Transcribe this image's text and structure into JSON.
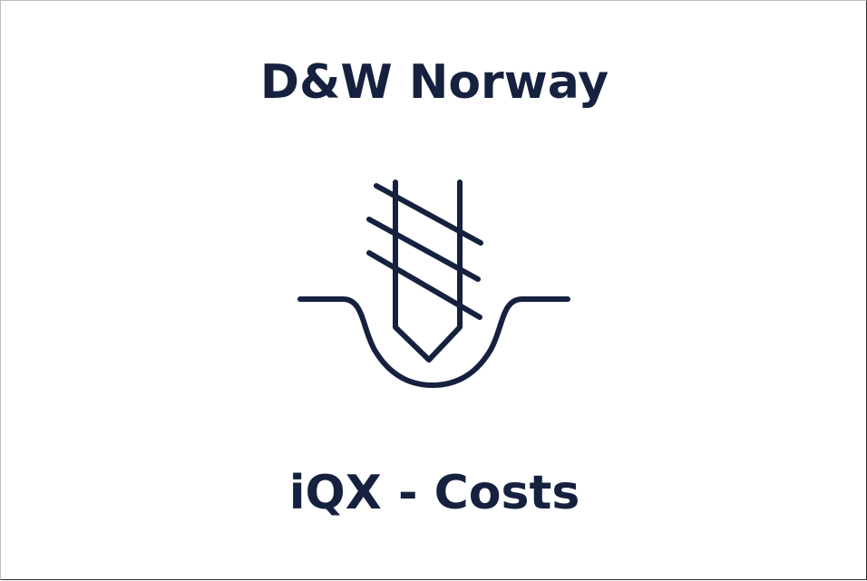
{
  "title": "D&W Norway",
  "subtitle": "iQX - Costs",
  "icon": "drill-into-ground-icon",
  "colors": {
    "ink": "#15213f",
    "background": "#ffffff"
  }
}
